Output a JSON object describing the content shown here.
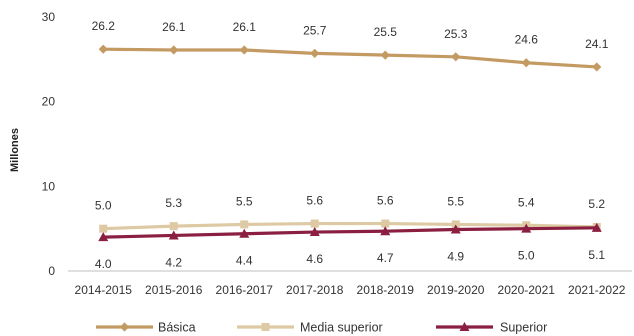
{
  "chart_data": {
    "type": "line",
    "title": "",
    "xlabel": "",
    "ylabel": "Millones",
    "ylim": [
      0,
      30
    ],
    "yticks": [
      0,
      10,
      20,
      30
    ],
    "grid": false,
    "legend_position": "bottom",
    "categories": [
      "2014-2015",
      "2015-2016",
      "2016-2017",
      "2017-2018",
      "2018-2019",
      "2019-2020",
      "2020-2021",
      "2021-2022"
    ],
    "series": [
      {
        "name": "Básica",
        "values": [
          26.2,
          26.1,
          26.1,
          25.7,
          25.5,
          25.3,
          24.6,
          24.1
        ],
        "labels": [
          "26.2",
          "26.1",
          "26.1",
          "25.7",
          "25.5",
          "25.3",
          "24.6",
          "24.1"
        ],
        "color": "#c49a63",
        "marker": "diamond",
        "label_position": "above"
      },
      {
        "name": "Media superior",
        "values": [
          5.0,
          5.3,
          5.5,
          5.6,
          5.6,
          5.5,
          5.4,
          5.2
        ],
        "labels": [
          "5.0",
          "5.3",
          "5.5",
          "5.6",
          "5.6",
          "5.5",
          "5.4",
          "5.2"
        ],
        "color": "#ddc9a3",
        "marker": "square",
        "label_position": "above"
      },
      {
        "name": "Superior",
        "values": [
          4.0,
          4.2,
          4.4,
          4.6,
          4.7,
          4.9,
          5.0,
          5.1
        ],
        "labels": [
          "4.0",
          "4.2",
          "4.4",
          "4.6",
          "4.7",
          "4.9",
          "5.0",
          "5.1"
        ],
        "color": "#8b1f41",
        "marker": "triangle",
        "label_position": "below"
      }
    ]
  }
}
